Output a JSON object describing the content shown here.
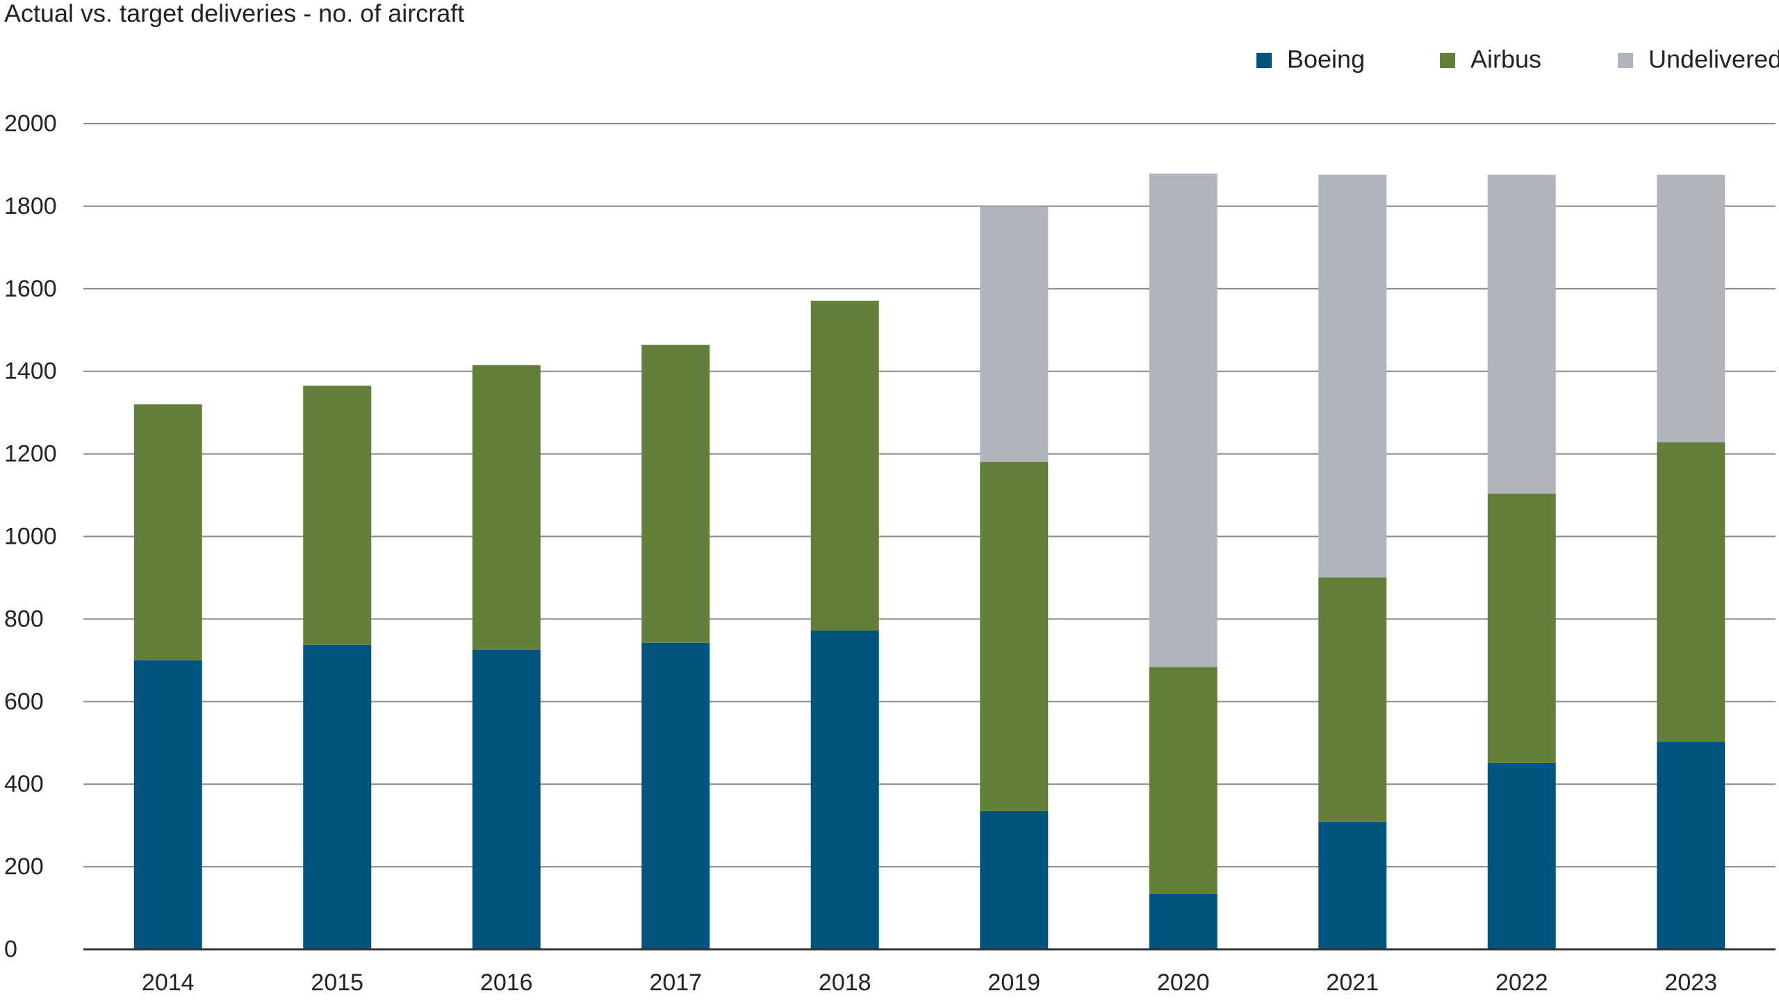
{
  "chart_data": {
    "type": "stacked_bar",
    "title": "Actual vs. target deliveries - no. of aircraft",
    "categories": [
      "2014",
      "2015",
      "2016",
      "2017",
      "2018",
      "2019",
      "2020",
      "2021",
      "2022",
      "2023"
    ],
    "series": [
      {
        "name": "Boeing",
        "color": "#00547e",
        "values": [
          700,
          737,
          725,
          742,
          772,
          335,
          135,
          308,
          451,
          503
        ]
      },
      {
        "name": "Airbus",
        "color": "#62803c",
        "values": [
          620,
          628,
          690,
          722,
          799,
          846,
          549,
          593,
          653,
          725
        ]
      },
      {
        "name": "Undelivered",
        "color": "#b0b4bc",
        "values": [
          null,
          null,
          null,
          null,
          null,
          618,
          1195,
          975,
          772,
          648
        ]
      }
    ],
    "ylim": [
      0,
      2000
    ],
    "yticks": [
      0,
      200,
      400,
      600,
      800,
      1000,
      1200,
      1400,
      1600,
      1800,
      2000
    ],
    "grid": true,
    "legend": "top-right"
  }
}
